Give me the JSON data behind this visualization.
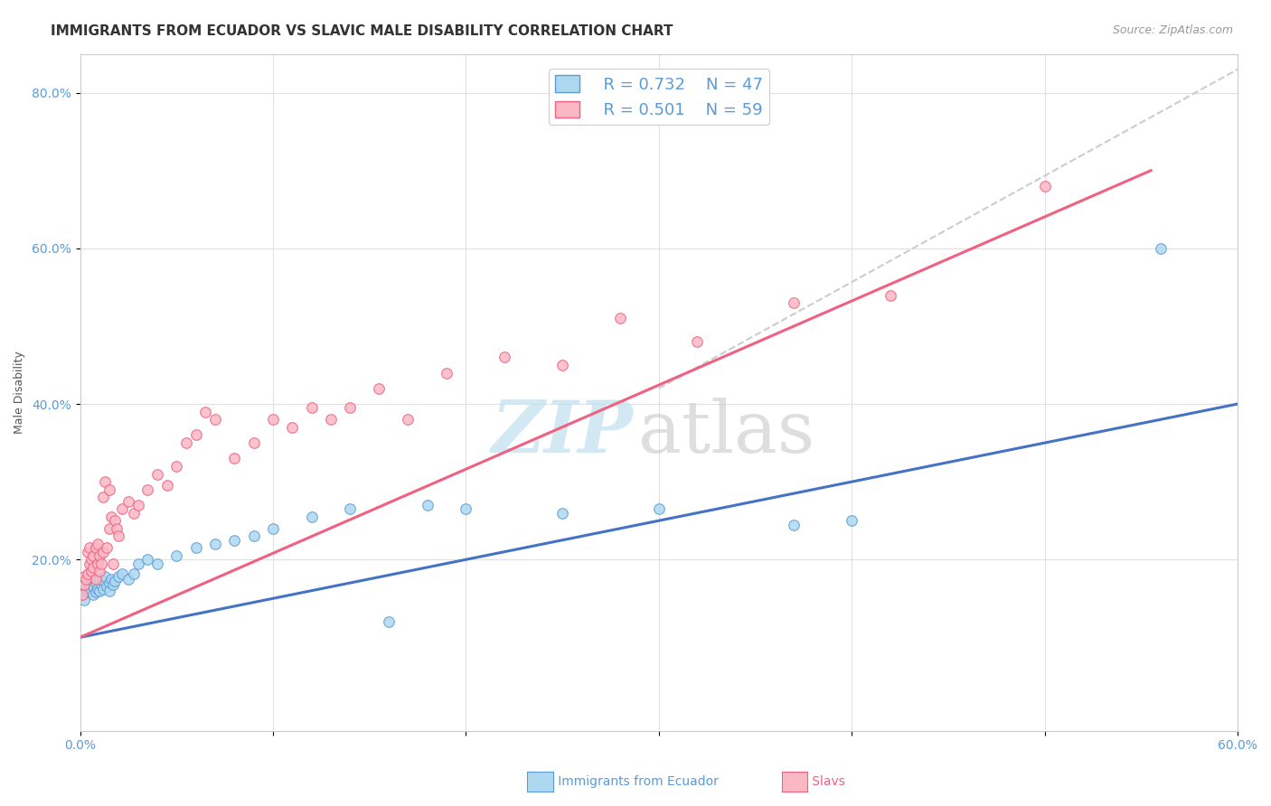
{
  "title": "IMMIGRANTS FROM ECUADOR VS SLAVIC MALE DISABILITY CORRELATION CHART",
  "source": "Source: ZipAtlas.com",
  "ylabel": "Male Disability",
  "xlim": [
    0.0,
    0.6
  ],
  "ylim": [
    -0.02,
    0.85
  ],
  "legend_R1": "R = 0.732",
  "legend_N1": "N = 47",
  "legend_R2": "R = 0.501",
  "legend_N2": "N = 59",
  "color_ecuador_fill": "#ADD8F0",
  "color_ecuador_edge": "#5B9BD5",
  "color_slavs_fill": "#F9B8C4",
  "color_slavs_edge": "#F06080",
  "color_line_ecuador": "#4472C4",
  "color_line_slavs": "#F06080",
  "color_dashed": "#CCCCCC",
  "background_color": "#FFFFFF",
  "title_fontsize": 11,
  "axis_label_fontsize": 9,
  "tick_fontsize": 10,
  "legend_fontsize": 13,
  "ecuador_x": [
    0.001,
    0.002,
    0.003,
    0.004,
    0.005,
    0.005,
    0.006,
    0.007,
    0.007,
    0.008,
    0.008,
    0.009,
    0.01,
    0.01,
    0.011,
    0.012,
    0.012,
    0.013,
    0.014,
    0.015,
    0.015,
    0.016,
    0.017,
    0.018,
    0.02,
    0.022,
    0.025,
    0.028,
    0.03,
    0.035,
    0.04,
    0.05,
    0.06,
    0.07,
    0.08,
    0.09,
    0.1,
    0.12,
    0.14,
    0.16,
    0.18,
    0.2,
    0.25,
    0.3,
    0.37,
    0.4,
    0.56
  ],
  "ecuador_y": [
    0.155,
    0.148,
    0.162,
    0.158,
    0.168,
    0.16,
    0.172,
    0.155,
    0.165,
    0.158,
    0.17,
    0.162,
    0.16,
    0.175,
    0.168,
    0.172,
    0.162,
    0.178,
    0.165,
    0.17,
    0.16,
    0.175,
    0.168,
    0.173,
    0.178,
    0.182,
    0.175,
    0.182,
    0.195,
    0.2,
    0.195,
    0.205,
    0.215,
    0.22,
    0.225,
    0.23,
    0.24,
    0.255,
    0.265,
    0.12,
    0.27,
    0.265,
    0.26,
    0.265,
    0.245,
    0.25,
    0.6
  ],
  "slavs_x": [
    0.001,
    0.002,
    0.002,
    0.003,
    0.004,
    0.004,
    0.005,
    0.005,
    0.006,
    0.006,
    0.007,
    0.007,
    0.008,
    0.008,
    0.009,
    0.009,
    0.01,
    0.01,
    0.011,
    0.012,
    0.012,
    0.013,
    0.014,
    0.015,
    0.015,
    0.016,
    0.017,
    0.018,
    0.019,
    0.02,
    0.022,
    0.025,
    0.028,
    0.03,
    0.035,
    0.04,
    0.045,
    0.05,
    0.055,
    0.06,
    0.065,
    0.07,
    0.08,
    0.09,
    0.1,
    0.11,
    0.12,
    0.13,
    0.14,
    0.155,
    0.17,
    0.19,
    0.22,
    0.25,
    0.28,
    0.32,
    0.37,
    0.42,
    0.5
  ],
  "slavs_y": [
    0.155,
    0.168,
    0.178,
    0.175,
    0.182,
    0.21,
    0.195,
    0.215,
    0.185,
    0.2,
    0.19,
    0.205,
    0.175,
    0.215,
    0.195,
    0.22,
    0.185,
    0.205,
    0.195,
    0.21,
    0.28,
    0.3,
    0.215,
    0.29,
    0.24,
    0.255,
    0.195,
    0.25,
    0.24,
    0.23,
    0.265,
    0.275,
    0.26,
    0.27,
    0.29,
    0.31,
    0.295,
    0.32,
    0.35,
    0.36,
    0.39,
    0.38,
    0.33,
    0.35,
    0.38,
    0.37,
    0.395,
    0.38,
    0.395,
    0.42,
    0.38,
    0.44,
    0.46,
    0.45,
    0.51,
    0.48,
    0.53,
    0.54,
    0.68
  ],
  "ecuador_line_x0": 0.0,
  "ecuador_line_y0": 0.1,
  "ecuador_line_x1": 0.6,
  "ecuador_line_y1": 0.4,
  "slavs_line_x0": 0.0,
  "slavs_line_y0": 0.1,
  "slavs_line_x1": 0.555,
  "slavs_line_y1": 0.7,
  "dashed_line_x0": 0.3,
  "dashed_line_y0": 0.42,
  "dashed_line_x1": 0.6,
  "dashed_line_y1": 0.83
}
